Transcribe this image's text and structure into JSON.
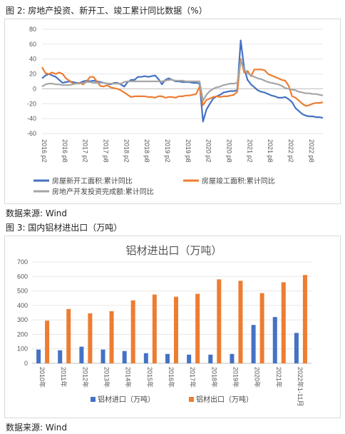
{
  "figure2": {
    "caption": "图 2:  房地产投资、新开工、竣工累计同比数据（%）",
    "source": "数据来源:  Wind"
  },
  "figure3": {
    "caption": "图 3:  国内铝材进出口（万吨）",
    "source": "数据来源:  Wind"
  },
  "colors": {
    "blue": "#4472C4",
    "orange": "#ED7D31",
    "gray": "#A5A5A5"
  },
  "chart_data": [
    {
      "type": "line",
      "title": "",
      "ylim": [
        -60,
        80
      ],
      "yticks": [
        -60,
        -40,
        -20,
        0,
        20,
        40,
        60,
        80
      ],
      "grid": true,
      "legend_position": "bottom",
      "x_tick_labels": [
        "2016 p2",
        "2016 p8",
        "2017 p2",
        "2017 p8",
        "2018 p2",
        "2018 p8",
        "2019 p2",
        "2019 p8",
        "2020 p2",
        "2020 p8",
        "2021 p2",
        "2021 p8",
        "2022 p2",
        "2022 p8"
      ],
      "x_start": "2016-02",
      "series": [
        {
          "name": "房屋新开工面积:累计同比",
          "color": "#4472C4",
          "values": [
            14,
            18,
            20,
            18,
            16,
            12,
            8,
            9,
            10,
            9,
            8,
            8,
            10,
            11,
            10,
            11,
            10,
            9,
            8,
            7,
            6,
            8,
            8,
            6,
            3,
            9,
            12,
            12,
            16,
            16,
            17,
            16,
            17,
            18,
            13,
            6,
            12,
            14,
            12,
            10,
            10,
            9,
            9,
            9,
            8,
            8,
            7,
            -44,
            -28,
            -20,
            -13,
            -10,
            -8,
            -5,
            -4,
            -3,
            -3,
            -2,
            65,
            28,
            12,
            6,
            2,
            -2,
            -4,
            -5,
            -7,
            -9,
            -10,
            -12,
            -12,
            -11,
            -14,
            -18,
            -26,
            -30,
            -34,
            -36,
            -37,
            -37,
            -38,
            -38,
            -39
          ]
        },
        {
          "name": "房屋竣工面积:累计同比",
          "color": "#ED7D31",
          "values": [
            29,
            21,
            20,
            22,
            20,
            22,
            20,
            14,
            11,
            7,
            7,
            8,
            6,
            10,
            16,
            16,
            10,
            4,
            3,
            5,
            2,
            1,
            0,
            -2,
            -5,
            -8,
            -11,
            -10,
            -10,
            -10,
            -10,
            -11,
            -11,
            -12,
            -10,
            -10,
            -12,
            -11,
            -11,
            -12,
            -10,
            -10,
            -9,
            -9,
            -8,
            -7,
            3,
            -22,
            -15,
            -13,
            -11,
            -10,
            -11,
            -10,
            -10,
            -9,
            -8,
            -4,
            40,
            22,
            24,
            17,
            26,
            26,
            26,
            25,
            20,
            18,
            16,
            14,
            12,
            11,
            4,
            -10,
            -12,
            -16,
            -20,
            -23,
            -22,
            -20,
            -19,
            -19,
            -18
          ]
        },
        {
          "name": "房地产开发投资完成额:累计同比",
          "color": "#A5A5A5",
          "values": [
            3,
            6,
            7,
            7,
            6,
            6,
            5,
            5,
            5,
            6,
            7,
            7,
            8,
            9,
            9,
            8,
            8,
            8,
            8,
            7,
            7,
            7,
            7,
            7,
            9,
            10,
            10,
            10,
            10,
            10,
            10,
            10,
            10,
            10,
            10,
            10,
            11,
            12,
            12,
            11,
            11,
            11,
            10,
            10,
            10,
            10,
            10,
            -16,
            -8,
            -3,
            0,
            2,
            3,
            5,
            6,
            7,
            7,
            8,
            38,
            26,
            21,
            18,
            16,
            14,
            13,
            11,
            9,
            8,
            7,
            6,
            4,
            1,
            0,
            -1,
            -2,
            -4,
            -5,
            -6,
            -6,
            -7,
            -7,
            -8,
            -9
          ]
        }
      ]
    },
    {
      "type": "bar",
      "title": "铝材进出口（万吨）",
      "ylim": [
        0,
        700
      ],
      "yticks": [
        0,
        100,
        200,
        300,
        400,
        500,
        600,
        700
      ],
      "grid": true,
      "legend_position": "bottom",
      "categories": [
        "2010年",
        "2011年",
        "2012年",
        "2013年",
        "2014年",
        "2015年",
        "2016年",
        "2017年",
        "2018年",
        "2019年",
        "2020年",
        "2021年",
        "2022年1-11月"
      ],
      "series": [
        {
          "name": "铝材进口（万吨）",
          "color": "#4472C4",
          "values": [
            95,
            90,
            115,
            95,
            85,
            70,
            65,
            60,
            60,
            65,
            265,
            320,
            210
          ]
        },
        {
          "name": "铝材出口（万吨）",
          "color": "#ED7D31",
          "values": [
            295,
            375,
            345,
            360,
            435,
            475,
            460,
            480,
            580,
            570,
            485,
            560,
            610
          ]
        }
      ]
    }
  ]
}
